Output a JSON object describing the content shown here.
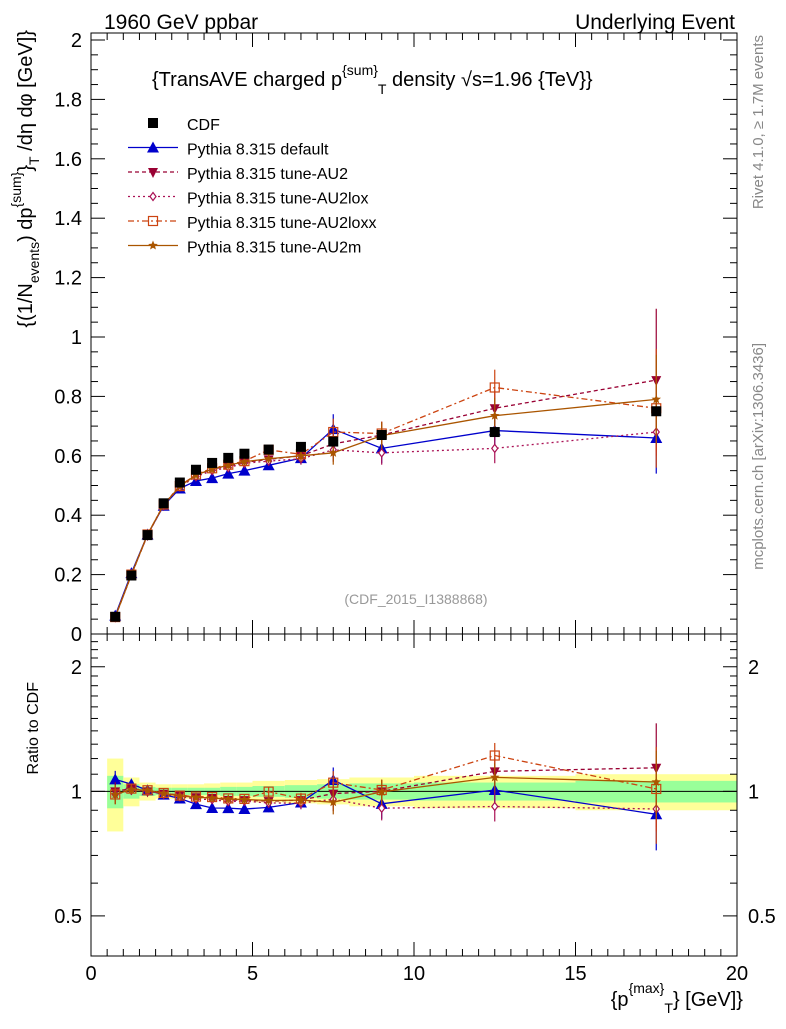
{
  "header": {
    "left": "1960 GeV ppbar",
    "right": "Underlying Event"
  },
  "side": {
    "rivet": "Rivet 4.1.0, ≥ 1.7M events",
    "mcplots": "mcplots.cern.ch [arXiv:1306.3436]"
  },
  "chart_data": {
    "type": "scatter",
    "title": "{TransAVE charged p^{sum}_T density √s=1.96 {TeV}}",
    "title_parts": {
      "a": "{TransAVE charged p",
      "sup": "{sum}",
      "sub": "T",
      "b": " density √s=1.96 {TeV}}"
    },
    "ylabel": "{(1/N_events) dp^{sum}_T /dη dφ [GeV]}",
    "ylabel_parts": {
      "a": "{(1/N",
      "sub1": "events",
      "b": ") dp",
      "sup": "{sum}",
      "c": "}",
      "sub2": "T",
      "d": " /dη  dφ [GeV]}"
    },
    "xlabel": "{p^{max}_T} [GeV]}",
    "xlabel_parts": {
      "a": "{p",
      "sup": "{max}",
      "sub": "T",
      "b": "} [GeV]}"
    },
    "ratio_ylabel": "Ratio to CDF",
    "watermark": "(CDF_2015_I1388868)",
    "xlim": [
      0,
      20
    ],
    "ylim": [
      0,
      2
    ],
    "ratio_ylim": [
      0.4,
      2.4
    ],
    "x_ticks": [
      "0",
      "5",
      "10",
      "15",
      "20"
    ],
    "y_ticks": [
      "0",
      "0.2",
      "0.4",
      "0.6",
      "0.8",
      "1",
      "1.2",
      "1.4",
      "1.6",
      "1.8",
      "2"
    ],
    "ratio_ticks": [
      "0.5",
      "1",
      "2"
    ],
    "x": [
      0.75,
      1.25,
      1.75,
      2.25,
      2.75,
      3.25,
      3.75,
      4.25,
      4.75,
      5.5,
      6.5,
      7.5,
      9.0,
      12.5,
      17.5
    ],
    "x_err": [
      0.25,
      0.25,
      0.25,
      0.25,
      0.25,
      0.25,
      0.25,
      0.25,
      0.25,
      0.5,
      0.5,
      0.5,
      1.0,
      2.5,
      2.5
    ],
    "cdf": {
      "name": "CDF",
      "values": [
        0.058,
        0.197,
        0.333,
        0.44,
        0.51,
        0.553,
        0.576,
        0.593,
        0.607,
        0.621,
        0.63,
        0.648,
        0.67,
        0.68,
        0.75
      ],
      "band_inner": [
        0.09,
        0.04,
        0.025,
        0.02,
        0.02,
        0.02,
        0.02,
        0.025,
        0.025,
        0.03,
        0.035,
        0.04,
        0.045,
        0.05,
        0.06
      ],
      "band_outer": [
        0.2,
        0.08,
        0.05,
        0.04,
        0.04,
        0.04,
        0.045,
        0.05,
        0.05,
        0.06,
        0.065,
        0.07,
        0.08,
        0.09,
        0.1
      ]
    },
    "series": [
      {
        "name": "Pythia 8.315 default",
        "color": "#0000cc",
        "dash": "",
        "marker": "tri-up",
        "values": [
          0.062,
          0.205,
          0.335,
          0.432,
          0.49,
          0.515,
          0.525,
          0.54,
          0.55,
          0.568,
          0.592,
          0.69,
          0.625,
          0.685,
          0.66
        ],
        "errors": [
          0.003,
          0.005,
          0.006,
          0.007,
          0.008,
          0.009,
          0.01,
          0.011,
          0.012,
          0.015,
          0.02,
          0.05,
          0.05,
          0.06,
          0.12
        ]
      },
      {
        "name": "Pythia 8.315 tune-AU2",
        "color": "#990033",
        "dash": "4,3",
        "marker": "tri-down",
        "values": [
          0.058,
          0.2,
          0.333,
          0.434,
          0.5,
          0.535,
          0.555,
          0.565,
          0.578,
          0.588,
          0.6,
          0.64,
          0.67,
          0.76,
          0.855
        ],
        "errors": [
          0.003,
          0.005,
          0.006,
          0.007,
          0.008,
          0.009,
          0.01,
          0.011,
          0.012,
          0.015,
          0.02,
          0.045,
          0.045,
          0.06,
          0.24
        ]
      },
      {
        "name": "Pythia 8.315 tune-AU2lox",
        "color": "#aa1155",
        "dash": "2,3",
        "marker": "diamond",
        "values": [
          0.057,
          0.198,
          0.334,
          0.433,
          0.495,
          0.53,
          0.55,
          0.56,
          0.575,
          0.582,
          0.59,
          0.62,
          0.61,
          0.625,
          0.68
        ],
        "errors": [
          0.003,
          0.005,
          0.006,
          0.007,
          0.008,
          0.009,
          0.01,
          0.011,
          0.012,
          0.015,
          0.02,
          0.04,
          0.04,
          0.05,
          0.08
        ]
      },
      {
        "name": "Pythia 8.315 tune-AU2loxx",
        "color": "#cc4411",
        "dash": "6,3,2,3",
        "marker": "square-open",
        "values": [
          0.057,
          0.2,
          0.335,
          0.436,
          0.498,
          0.537,
          0.558,
          0.57,
          0.582,
          0.62,
          0.605,
          0.68,
          0.675,
          0.83,
          0.76
        ],
        "errors": [
          0.003,
          0.005,
          0.006,
          0.007,
          0.008,
          0.009,
          0.01,
          0.011,
          0.012,
          0.015,
          0.02,
          0.045,
          0.04,
          0.06,
          0.2
        ]
      },
      {
        "name": "Pythia 8.315 tune-AU2m",
        "color": "#aa5500",
        "dash": "",
        "marker": "star",
        "values": [
          0.057,
          0.199,
          0.335,
          0.435,
          0.497,
          0.535,
          0.555,
          0.568,
          0.58,
          0.59,
          0.6,
          0.61,
          0.668,
          0.735,
          0.79
        ],
        "errors": [
          0.003,
          0.005,
          0.006,
          0.007,
          0.008,
          0.009,
          0.01,
          0.011,
          0.012,
          0.015,
          0.02,
          0.04,
          0.045,
          0.06,
          0.15
        ]
      }
    ]
  }
}
